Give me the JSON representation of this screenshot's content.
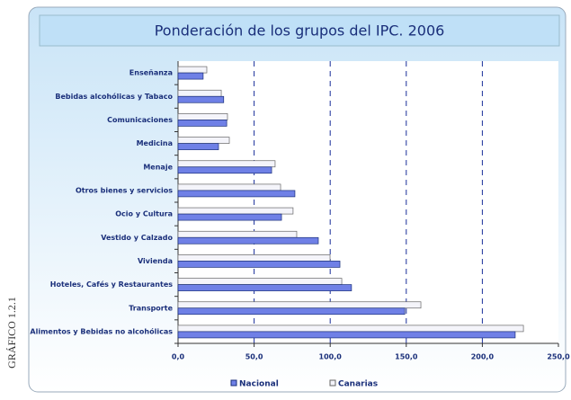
{
  "side_label": "GRÁFICO 1.2.1",
  "chart_data": {
    "type": "hbar",
    "title": "Ponderación de los grupos del IPC. 2006",
    "categories": [
      "Enseñanza",
      "Bebidas alcohólicas y Tabaco",
      "Comunicaciones",
      "Medicina",
      "Menaje",
      "Otros bienes y servicios",
      "Ocio y Cultura",
      "Vestido y Calzado",
      "Vivienda",
      "Hoteles, Cafés y Restaurantes",
      "Transporte",
      "Alimentos y Bebidas no alcohólicas"
    ],
    "series": [
      {
        "name": "Nacional",
        "color": "#6f80e6",
        "values": [
          16.5,
          30,
          32,
          26.6,
          61.5,
          76.8,
          68,
          92.2,
          106.4,
          114,
          149,
          221.6
        ]
      },
      {
        "name": "Canarias",
        "color": "#f4f4fa",
        "values": [
          18.9,
          28.4,
          32.5,
          33.7,
          63.8,
          67.4,
          75.6,
          78,
          99.9,
          107.6,
          159.6,
          227
        ]
      }
    ],
    "xlim": [
      0,
      250
    ],
    "xticks": [
      {
        "value": 0,
        "label": "0,0"
      },
      {
        "value": 50,
        "label": "50,0"
      },
      {
        "value": 100,
        "label": "100,0"
      },
      {
        "value": 150,
        "label": "150,0"
      },
      {
        "value": 200,
        "label": "200,0"
      },
      {
        "value": 250,
        "label": "250,0"
      }
    ],
    "grid": true,
    "legend": "bottom"
  }
}
